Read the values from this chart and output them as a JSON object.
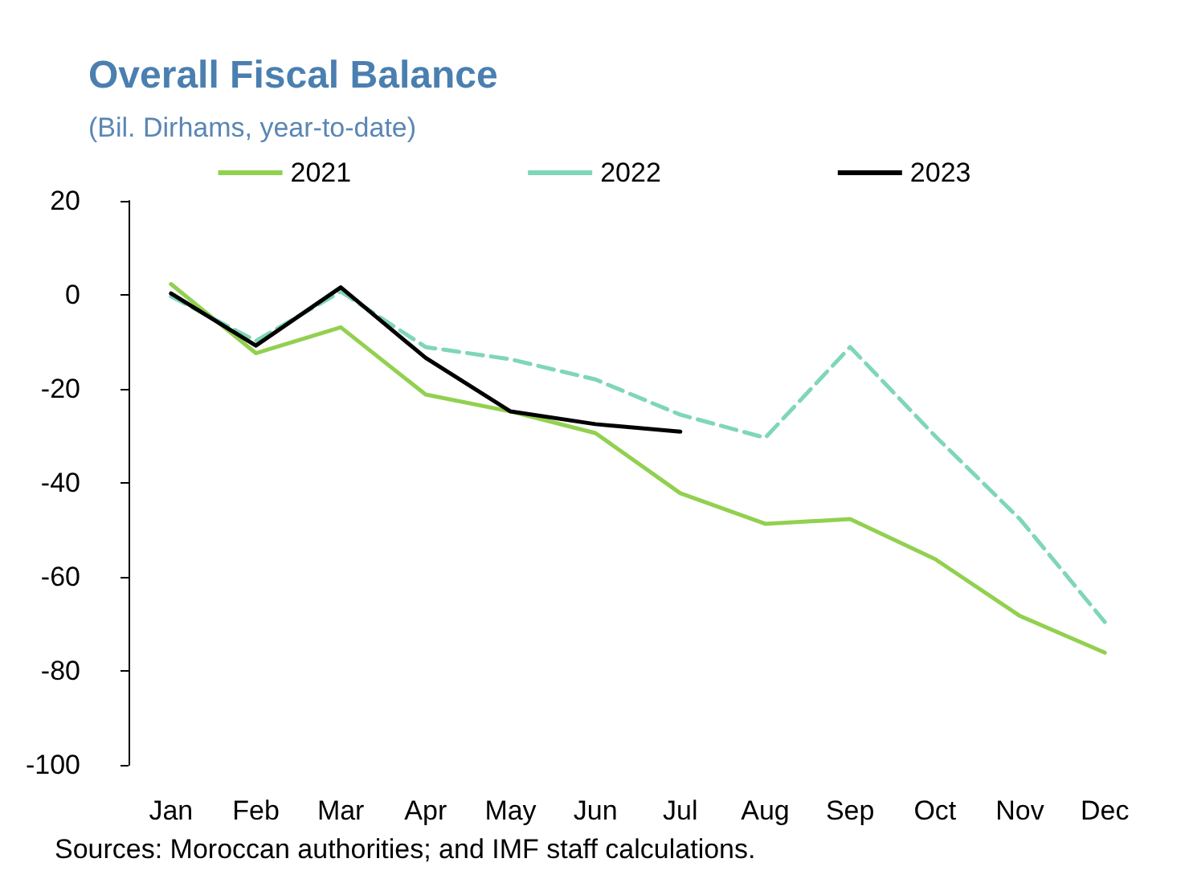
{
  "chart_data": {
    "type": "line",
    "title": "Overall Fiscal Balance",
    "subtitle": "(Bil. Dirhams, year-to-date)",
    "categories": [
      "Jan",
      "Feb",
      "Mar",
      "Apr",
      "May",
      "Jun",
      "Jul",
      "Aug",
      "Sep",
      "Oct",
      "Nov",
      "Dec"
    ],
    "series": [
      {
        "name": "2021",
        "color": "#92d050",
        "line_style": "solid",
        "values": [
          2.3,
          -12.4,
          -6.9,
          -21.2,
          -24.8,
          -29.4,
          -42.2,
          -48.7,
          -47.7,
          -56.2,
          -68.3,
          -76.1
        ]
      },
      {
        "name": "2022",
        "color": "#7fd6b8",
        "line_style": "dashed",
        "values": [
          -0.3,
          -9.8,
          0.7,
          -11.1,
          -13.7,
          -18,
          -25.5,
          -30.4,
          -11.1,
          -30,
          -47.7,
          -69.6
        ]
      },
      {
        "name": "2023",
        "color": "#000000",
        "line_style": "solid",
        "values": [
          0.3,
          -10.8,
          1.6,
          -13.4,
          -24.8,
          -27.5,
          -29.1,
          null,
          null,
          null,
          null,
          null
        ]
      }
    ],
    "ylim": [
      -100,
      20
    ],
    "yticks": [
      -100,
      -80,
      -60,
      -40,
      -20,
      0,
      20
    ],
    "grid": false,
    "legend": "top",
    "marker": "none",
    "annotations": [
      "Sources: Moroccan authorities; and IMF staff calculations."
    ]
  }
}
